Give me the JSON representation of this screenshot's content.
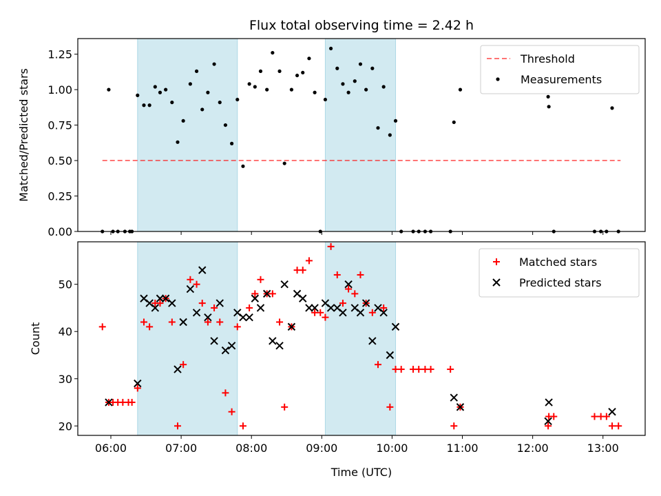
{
  "title": "Flux total observing time = 2.42 h",
  "colors": {
    "shade": "#add8e6",
    "threshold": "#ff0000",
    "measurement": "#000000",
    "matched": "#ff0000",
    "predicted": "#000000"
  },
  "chart_data": [
    {
      "type": "scatter",
      "ylabel": "Matched/Predicted stars",
      "xlim": [
        5.53,
        13.6
      ],
      "ylim": [
        0,
        1.36
      ],
      "yticks": [
        0.0,
        0.25,
        0.5,
        0.75,
        1.0,
        1.25
      ],
      "ytick_labels": [
        "0.00",
        "0.25",
        "0.50",
        "0.75",
        "1.00",
        "1.25"
      ],
      "shaded_intervals": [
        [
          6.38,
          7.8
        ],
        [
          9.05,
          10.05
        ]
      ],
      "legend": {
        "placement": "top-right",
        "entries": [
          "Threshold",
          "Measurements"
        ]
      },
      "threshold": {
        "name": "Threshold",
        "x": [
          5.88,
          13.25
        ],
        "y": 0.5,
        "style": "dashed"
      },
      "series": [
        {
          "name": "Measurements",
          "points": [
            [
              5.88,
              0.0
            ],
            [
              5.97,
              1.0
            ],
            [
              6.03,
              0.0
            ],
            [
              6.1,
              0.0
            ],
            [
              6.2,
              0.0
            ],
            [
              6.27,
              0.0
            ],
            [
              6.3,
              0.0
            ],
            [
              6.38,
              0.96
            ],
            [
              6.47,
              0.89
            ],
            [
              6.55,
              0.89
            ],
            [
              6.63,
              1.02
            ],
            [
              6.7,
              0.98
            ],
            [
              6.78,
              1.0
            ],
            [
              6.87,
              0.91
            ],
            [
              6.95,
              0.63
            ],
            [
              7.03,
              0.78
            ],
            [
              7.13,
              1.04
            ],
            [
              7.22,
              1.13
            ],
            [
              7.3,
              0.86
            ],
            [
              7.38,
              0.98
            ],
            [
              7.47,
              1.18
            ],
            [
              7.55,
              0.91
            ],
            [
              7.63,
              0.75
            ],
            [
              7.72,
              0.62
            ],
            [
              7.8,
              0.93
            ],
            [
              7.88,
              0.46
            ],
            [
              7.97,
              1.04
            ],
            [
              8.05,
              1.02
            ],
            [
              8.13,
              1.13
            ],
            [
              8.22,
              1.0
            ],
            [
              8.3,
              1.26
            ],
            [
              8.4,
              1.13
            ],
            [
              8.47,
              0.48
            ],
            [
              8.57,
              1.0
            ],
            [
              8.65,
              1.1
            ],
            [
              8.73,
              1.12
            ],
            [
              8.82,
              1.22
            ],
            [
              8.9,
              0.98
            ],
            [
              8.98,
              0.0
            ],
            [
              9.05,
              0.93
            ],
            [
              9.13,
              1.29
            ],
            [
              9.22,
              1.15
            ],
            [
              9.3,
              1.04
            ],
            [
              9.38,
              0.98
            ],
            [
              9.47,
              1.06
            ],
            [
              9.55,
              1.18
            ],
            [
              9.63,
              1.0
            ],
            [
              9.72,
              1.15
            ],
            [
              9.8,
              0.73
            ],
            [
              9.88,
              1.02
            ],
            [
              9.97,
              0.68
            ],
            [
              10.05,
              0.78
            ],
            [
              10.13,
              0.0
            ],
            [
              10.3,
              0.0
            ],
            [
              10.38,
              0.0
            ],
            [
              10.47,
              0.0
            ],
            [
              10.55,
              0.0
            ],
            [
              10.83,
              0.0
            ],
            [
              10.88,
              0.77
            ],
            [
              10.97,
              1.0
            ],
            [
              12.22,
              0.95
            ],
            [
              12.23,
              0.88
            ],
            [
              12.3,
              0.0
            ],
            [
              12.88,
              0.0
            ],
            [
              12.97,
              0.0
            ],
            [
              13.05,
              0.0
            ],
            [
              13.13,
              0.87
            ],
            [
              13.22,
              0.0
            ]
          ]
        }
      ]
    },
    {
      "type": "scatter",
      "xlabel": "Time (UTC)",
      "ylabel": "Count",
      "xlim": [
        5.53,
        13.6
      ],
      "ylim": [
        18,
        59
      ],
      "xticks": [
        6,
        7,
        8,
        9,
        10,
        11,
        12,
        13
      ],
      "xtick_labels": [
        "06:00",
        "07:00",
        "08:00",
        "09:00",
        "10:00",
        "11:00",
        "12:00",
        "13:00"
      ],
      "yticks": [
        20,
        30,
        40,
        50
      ],
      "ytick_labels": [
        "20",
        "30",
        "40",
        "50"
      ],
      "shaded_intervals": [
        [
          6.38,
          7.8
        ],
        [
          9.05,
          10.05
        ]
      ],
      "legend": {
        "placement": "top-right",
        "entries": [
          "Matched stars",
          "Predicted stars"
        ]
      },
      "series": [
        {
          "name": "Matched stars",
          "marker": "plus",
          "points": [
            [
              5.88,
              41
            ],
            [
              5.97,
              25
            ],
            [
              6.03,
              25
            ],
            [
              6.1,
              25
            ],
            [
              6.17,
              25
            ],
            [
              6.25,
              25
            ],
            [
              6.3,
              25
            ],
            [
              6.38,
              28
            ],
            [
              6.47,
              42
            ],
            [
              6.55,
              41
            ],
            [
              6.63,
              46
            ],
            [
              6.7,
              46
            ],
            [
              6.78,
              47
            ],
            [
              6.87,
              42
            ],
            [
              6.95,
              20
            ],
            [
              7.03,
              33
            ],
            [
              7.13,
              51
            ],
            [
              7.22,
              50
            ],
            [
              7.3,
              46
            ],
            [
              7.38,
              42
            ],
            [
              7.47,
              45
            ],
            [
              7.55,
              42
            ],
            [
              7.63,
              27
            ],
            [
              7.72,
              23
            ],
            [
              7.8,
              41
            ],
            [
              7.88,
              20
            ],
            [
              7.97,
              45
            ],
            [
              8.05,
              48
            ],
            [
              8.13,
              51
            ],
            [
              8.22,
              48
            ],
            [
              8.3,
              48
            ],
            [
              8.4,
              42
            ],
            [
              8.47,
              24
            ],
            [
              8.57,
              41
            ],
            [
              8.65,
              53
            ],
            [
              8.73,
              53
            ],
            [
              8.82,
              55
            ],
            [
              8.9,
              44
            ],
            [
              8.98,
              44
            ],
            [
              9.05,
              43
            ],
            [
              9.13,
              58
            ],
            [
              9.22,
              52
            ],
            [
              9.3,
              46
            ],
            [
              9.38,
              49
            ],
            [
              9.47,
              48
            ],
            [
              9.55,
              52
            ],
            [
              9.63,
              46
            ],
            [
              9.72,
              44
            ],
            [
              9.8,
              33
            ],
            [
              9.88,
              45
            ],
            [
              9.97,
              24
            ],
            [
              10.05,
              32
            ],
            [
              10.13,
              32
            ],
            [
              10.3,
              32
            ],
            [
              10.38,
              32
            ],
            [
              10.47,
              32
            ],
            [
              10.55,
              32
            ],
            [
              10.83,
              32
            ],
            [
              10.88,
              20
            ],
            [
              10.97,
              24
            ],
            [
              12.22,
              20
            ],
            [
              12.23,
              22
            ],
            [
              12.3,
              22
            ],
            [
              12.88,
              22
            ],
            [
              12.97,
              22
            ],
            [
              13.05,
              22
            ],
            [
              13.13,
              20
            ],
            [
              13.22,
              20
            ]
          ]
        },
        {
          "name": "Predicted stars",
          "marker": "x",
          "points": [
            [
              5.97,
              25
            ],
            [
              6.38,
              29
            ],
            [
              6.47,
              47
            ],
            [
              6.55,
              46
            ],
            [
              6.63,
              45
            ],
            [
              6.7,
              47
            ],
            [
              6.78,
              47
            ],
            [
              6.87,
              46
            ],
            [
              6.95,
              32
            ],
            [
              7.03,
              42
            ],
            [
              7.13,
              49
            ],
            [
              7.22,
              44
            ],
            [
              7.3,
              53
            ],
            [
              7.38,
              43
            ],
            [
              7.47,
              38
            ],
            [
              7.55,
              46
            ],
            [
              7.63,
              36
            ],
            [
              7.72,
              37
            ],
            [
              7.8,
              44
            ],
            [
              7.88,
              43
            ],
            [
              7.97,
              43
            ],
            [
              8.05,
              47
            ],
            [
              8.13,
              45
            ],
            [
              8.22,
              48
            ],
            [
              8.3,
              38
            ],
            [
              8.4,
              37
            ],
            [
              8.47,
              50
            ],
            [
              8.57,
              41
            ],
            [
              8.65,
              48
            ],
            [
              8.73,
              47
            ],
            [
              8.82,
              45
            ],
            [
              8.9,
              45
            ],
            [
              9.05,
              46
            ],
            [
              9.13,
              45
            ],
            [
              9.22,
              45
            ],
            [
              9.3,
              44
            ],
            [
              9.38,
              50
            ],
            [
              9.47,
              45
            ],
            [
              9.55,
              44
            ],
            [
              9.63,
              46
            ],
            [
              9.72,
              38
            ],
            [
              9.8,
              45
            ],
            [
              9.88,
              44
            ],
            [
              9.97,
              35
            ],
            [
              10.05,
              41
            ],
            [
              10.88,
              26
            ],
            [
              10.97,
              24
            ],
            [
              12.22,
              21
            ],
            [
              12.23,
              25
            ],
            [
              13.13,
              23
            ]
          ]
        }
      ]
    }
  ]
}
